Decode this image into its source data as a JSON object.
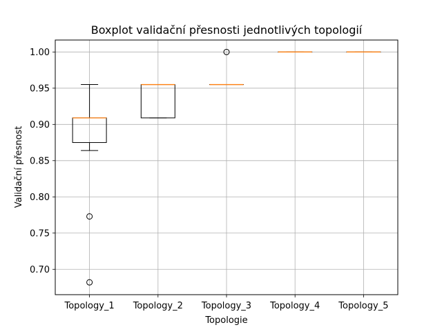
{
  "chart_data": {
    "type": "boxplot",
    "title": "Boxplot validační přesnosti jednotlivých topologií",
    "xlabel": "Topologie",
    "ylabel": "Validační přesnost",
    "categories": [
      "Topology_1",
      "Topology_2",
      "Topology_3",
      "Topology_4",
      "Topology_5"
    ],
    "ylim": [
      0.665,
      1.0165
    ],
    "yticks": [
      0.7,
      0.75,
      0.8,
      0.85,
      0.9,
      0.95,
      1.0
    ],
    "ytick_labels": [
      "0.70",
      "0.75",
      "0.80",
      "0.85",
      "0.90",
      "0.95",
      "1.00"
    ],
    "grid": true,
    "boxes": [
      {
        "category": "Topology_1",
        "whisker_low": 0.864,
        "q1": 0.875,
        "median": 0.909,
        "q3": 0.909,
        "whisker_high": 0.955,
        "outliers": [
          0.773,
          0.682
        ]
      },
      {
        "category": "Topology_2",
        "whisker_low": 0.909,
        "q1": 0.909,
        "median": 0.955,
        "q3": 0.955,
        "whisker_high": 0.955,
        "outliers": []
      },
      {
        "category": "Topology_3",
        "whisker_low": 0.955,
        "q1": 0.955,
        "median": 0.955,
        "q3": 0.955,
        "whisker_high": 0.955,
        "outliers": [
          1.0
        ]
      },
      {
        "category": "Topology_4",
        "whisker_low": 1.0,
        "q1": 1.0,
        "median": 1.0,
        "q3": 1.0,
        "whisker_high": 1.0,
        "outliers": []
      },
      {
        "category": "Topology_5",
        "whisker_low": 1.0,
        "q1": 1.0,
        "median": 1.0,
        "q3": 1.0,
        "whisker_high": 1.0,
        "outliers": []
      }
    ],
    "colors": {
      "median": "#ff7f0e",
      "box": "#000000",
      "grid": "#b0b0b0"
    }
  }
}
